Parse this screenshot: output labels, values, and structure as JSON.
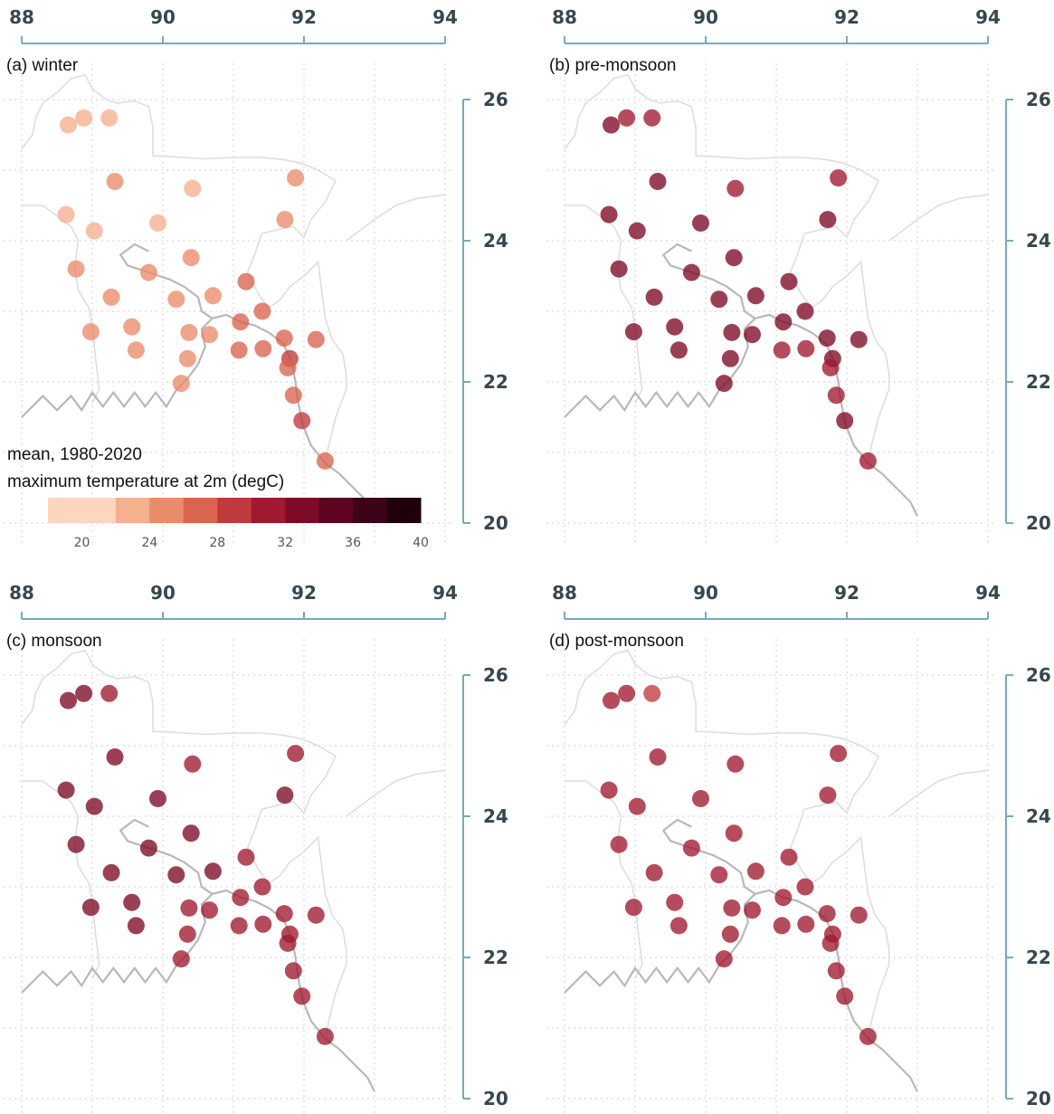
{
  "figure": {
    "lon_ticks": [
      "88",
      "90",
      "92",
      "94"
    ],
    "lat_ticks": [
      "20",
      "22",
      "24",
      "26"
    ]
  },
  "legend": {
    "line1": "mean, 1980-2020",
    "line2": "maximum temperature at 2m (degC)",
    "tick_labels": [
      "20",
      "24",
      "28",
      "32",
      "36",
      "40"
    ],
    "bins": [
      {
        "from": 18,
        "to": 22,
        "color": "#fcd6bf"
      },
      {
        "from": 22,
        "to": 24,
        "color": "#f5b08e"
      },
      {
        "from": 24,
        "to": 26,
        "color": "#e98c6a"
      },
      {
        "from": 26,
        "to": 28,
        "color": "#d9644f"
      },
      {
        "from": 28,
        "to": 30,
        "color": "#c03a3d"
      },
      {
        "from": 30,
        "to": 32,
        "color": "#9f1a30"
      },
      {
        "from": 32,
        "to": 34,
        "color": "#7d0a27"
      },
      {
        "from": 34,
        "to": 36,
        "color": "#5c0420"
      },
      {
        "from": 36,
        "to": 38,
        "color": "#3d0318"
      },
      {
        "from": 38,
        "to": 40,
        "color": "#1f010c"
      }
    ]
  },
  "panels": [
    {
      "title": "(a) winter",
      "stations": [
        {
          "lon": 88.66,
          "lat": 25.64,
          "c": "#f5b08e"
        },
        {
          "lon": 88.88,
          "lat": 25.74,
          "c": "#f5b08e"
        },
        {
          "lon": 89.24,
          "lat": 25.74,
          "c": "#f5b08e"
        },
        {
          "lon": 89.32,
          "lat": 24.84,
          "c": "#e98c6a"
        },
        {
          "lon": 90.42,
          "lat": 24.74,
          "c": "#f5b08e"
        },
        {
          "lon": 91.88,
          "lat": 24.89,
          "c": "#e98c6a"
        },
        {
          "lon": 88.63,
          "lat": 24.37,
          "c": "#f5b08e"
        },
        {
          "lon": 89.03,
          "lat": 24.14,
          "c": "#f5b08e"
        },
        {
          "lon": 89.93,
          "lat": 24.25,
          "c": "#f5b08e"
        },
        {
          "lon": 91.73,
          "lat": 24.3,
          "c": "#e98c6a"
        },
        {
          "lon": 88.77,
          "lat": 23.6,
          "c": "#e98c6a"
        },
        {
          "lon": 89.8,
          "lat": 23.55,
          "c": "#e98c6a"
        },
        {
          "lon": 90.4,
          "lat": 23.76,
          "c": "#e98c6a"
        },
        {
          "lon": 89.27,
          "lat": 23.2,
          "c": "#e98c6a"
        },
        {
          "lon": 90.19,
          "lat": 23.17,
          "c": "#e98c6a"
        },
        {
          "lon": 90.71,
          "lat": 23.22,
          "c": "#e98c6a"
        },
        {
          "lon": 91.18,
          "lat": 23.42,
          "c": "#d9644f"
        },
        {
          "lon": 91.41,
          "lat": 23.0,
          "c": "#d9644f"
        },
        {
          "lon": 88.98,
          "lat": 22.71,
          "c": "#e98c6a"
        },
        {
          "lon": 89.56,
          "lat": 22.78,
          "c": "#e98c6a"
        },
        {
          "lon": 90.37,
          "lat": 22.7,
          "c": "#e98c6a"
        },
        {
          "lon": 90.66,
          "lat": 22.67,
          "c": "#e98c6a"
        },
        {
          "lon": 91.1,
          "lat": 22.85,
          "c": "#d9644f"
        },
        {
          "lon": 91.72,
          "lat": 22.62,
          "c": "#d9644f"
        },
        {
          "lon": 92.17,
          "lat": 22.6,
          "c": "#d9644f"
        },
        {
          "lon": 89.62,
          "lat": 22.45,
          "c": "#e98c6a"
        },
        {
          "lon": 90.35,
          "lat": 22.33,
          "c": "#e98c6a"
        },
        {
          "lon": 91.08,
          "lat": 22.45,
          "c": "#d9644f"
        },
        {
          "lon": 91.42,
          "lat": 22.47,
          "c": "#d9644f"
        },
        {
          "lon": 91.8,
          "lat": 22.33,
          "c": "#c03a3d"
        },
        {
          "lon": 91.77,
          "lat": 22.2,
          "c": "#d9644f"
        },
        {
          "lon": 90.26,
          "lat": 21.98,
          "c": "#e98c6a"
        },
        {
          "lon": 91.85,
          "lat": 21.81,
          "c": "#d9644f"
        },
        {
          "lon": 91.97,
          "lat": 21.45,
          "c": "#c03a3d"
        },
        {
          "lon": 92.3,
          "lat": 20.88,
          "c": "#d9644f"
        }
      ]
    },
    {
      "title": "(b) pre-monsoon",
      "stations": [
        {
          "lon": 88.66,
          "lat": 25.64,
          "c": "#7d0a27"
        },
        {
          "lon": 88.88,
          "lat": 25.74,
          "c": "#9f1a30"
        },
        {
          "lon": 89.24,
          "lat": 25.74,
          "c": "#9f1a30"
        },
        {
          "lon": 89.32,
          "lat": 24.84,
          "c": "#7d0a27"
        },
        {
          "lon": 90.42,
          "lat": 24.74,
          "c": "#9f1a30"
        },
        {
          "lon": 91.88,
          "lat": 24.89,
          "c": "#9f1a30"
        },
        {
          "lon": 88.63,
          "lat": 24.37,
          "c": "#7d0a27"
        },
        {
          "lon": 89.03,
          "lat": 24.14,
          "c": "#7d0a27"
        },
        {
          "lon": 89.93,
          "lat": 24.25,
          "c": "#7d0a27"
        },
        {
          "lon": 91.73,
          "lat": 24.3,
          "c": "#7d0a27"
        },
        {
          "lon": 88.77,
          "lat": 23.6,
          "c": "#7d0a27"
        },
        {
          "lon": 89.8,
          "lat": 23.55,
          "c": "#7d0a27"
        },
        {
          "lon": 90.4,
          "lat": 23.76,
          "c": "#7d0a27"
        },
        {
          "lon": 89.27,
          "lat": 23.2,
          "c": "#7d0a27"
        },
        {
          "lon": 90.19,
          "lat": 23.17,
          "c": "#7d0a27"
        },
        {
          "lon": 90.71,
          "lat": 23.22,
          "c": "#7d0a27"
        },
        {
          "lon": 91.18,
          "lat": 23.42,
          "c": "#7d0a27"
        },
        {
          "lon": 91.41,
          "lat": 23.0,
          "c": "#7d0a27"
        },
        {
          "lon": 88.98,
          "lat": 22.71,
          "c": "#7d0a27"
        },
        {
          "lon": 89.56,
          "lat": 22.78,
          "c": "#7d0a27"
        },
        {
          "lon": 90.37,
          "lat": 22.7,
          "c": "#7d0a27"
        },
        {
          "lon": 90.66,
          "lat": 22.67,
          "c": "#7d0a27"
        },
        {
          "lon": 91.1,
          "lat": 22.85,
          "c": "#7d0a27"
        },
        {
          "lon": 91.72,
          "lat": 22.62,
          "c": "#7d0a27"
        },
        {
          "lon": 92.17,
          "lat": 22.6,
          "c": "#7d0a27"
        },
        {
          "lon": 89.62,
          "lat": 22.45,
          "c": "#7d0a27"
        },
        {
          "lon": 90.35,
          "lat": 22.33,
          "c": "#7d0a27"
        },
        {
          "lon": 91.08,
          "lat": 22.45,
          "c": "#9f1a30"
        },
        {
          "lon": 91.42,
          "lat": 22.47,
          "c": "#9f1a30"
        },
        {
          "lon": 91.8,
          "lat": 22.33,
          "c": "#7d0a27"
        },
        {
          "lon": 91.77,
          "lat": 22.2,
          "c": "#9f1a30"
        },
        {
          "lon": 90.26,
          "lat": 21.98,
          "c": "#7d0a27"
        },
        {
          "lon": 91.85,
          "lat": 21.81,
          "c": "#9f1a30"
        },
        {
          "lon": 91.97,
          "lat": 21.45,
          "c": "#7d0a27"
        },
        {
          "lon": 92.3,
          "lat": 20.88,
          "c": "#9f1a30"
        }
      ]
    },
    {
      "title": "(c) monsoon",
      "stations": [
        {
          "lon": 88.66,
          "lat": 25.64,
          "c": "#7d0a27"
        },
        {
          "lon": 88.88,
          "lat": 25.74,
          "c": "#7d0a27"
        },
        {
          "lon": 89.24,
          "lat": 25.74,
          "c": "#9f1a30"
        },
        {
          "lon": 89.32,
          "lat": 24.84,
          "c": "#7d0a27"
        },
        {
          "lon": 90.42,
          "lat": 24.74,
          "c": "#9f1a30"
        },
        {
          "lon": 91.88,
          "lat": 24.89,
          "c": "#9f1a30"
        },
        {
          "lon": 88.63,
          "lat": 24.37,
          "c": "#7d0a27"
        },
        {
          "lon": 89.03,
          "lat": 24.14,
          "c": "#7d0a27"
        },
        {
          "lon": 89.93,
          "lat": 24.25,
          "c": "#7d0a27"
        },
        {
          "lon": 91.73,
          "lat": 24.3,
          "c": "#7d0a27"
        },
        {
          "lon": 88.77,
          "lat": 23.6,
          "c": "#7d0a27"
        },
        {
          "lon": 89.8,
          "lat": 23.55,
          "c": "#7d0a27"
        },
        {
          "lon": 90.4,
          "lat": 23.76,
          "c": "#7d0a27"
        },
        {
          "lon": 89.27,
          "lat": 23.2,
          "c": "#7d0a27"
        },
        {
          "lon": 90.19,
          "lat": 23.17,
          "c": "#7d0a27"
        },
        {
          "lon": 90.71,
          "lat": 23.22,
          "c": "#7d0a27"
        },
        {
          "lon": 91.18,
          "lat": 23.42,
          "c": "#9f1a30"
        },
        {
          "lon": 91.41,
          "lat": 23.0,
          "c": "#9f1a30"
        },
        {
          "lon": 88.98,
          "lat": 22.71,
          "c": "#7d0a27"
        },
        {
          "lon": 89.56,
          "lat": 22.78,
          "c": "#7d0a27"
        },
        {
          "lon": 90.37,
          "lat": 22.7,
          "c": "#9f1a30"
        },
        {
          "lon": 90.66,
          "lat": 22.67,
          "c": "#9f1a30"
        },
        {
          "lon": 91.1,
          "lat": 22.85,
          "c": "#9f1a30"
        },
        {
          "lon": 91.72,
          "lat": 22.62,
          "c": "#9f1a30"
        },
        {
          "lon": 92.17,
          "lat": 22.6,
          "c": "#9f1a30"
        },
        {
          "lon": 89.62,
          "lat": 22.45,
          "c": "#7d0a27"
        },
        {
          "lon": 90.35,
          "lat": 22.33,
          "c": "#9f1a30"
        },
        {
          "lon": 91.08,
          "lat": 22.45,
          "c": "#9f1a30"
        },
        {
          "lon": 91.42,
          "lat": 22.47,
          "c": "#9f1a30"
        },
        {
          "lon": 91.8,
          "lat": 22.33,
          "c": "#9f1a30"
        },
        {
          "lon": 91.77,
          "lat": 22.2,
          "c": "#9f1a30"
        },
        {
          "lon": 90.26,
          "lat": 21.98,
          "c": "#9f1a30"
        },
        {
          "lon": 91.85,
          "lat": 21.81,
          "c": "#9f1a30"
        },
        {
          "lon": 91.97,
          "lat": 21.45,
          "c": "#9f1a30"
        },
        {
          "lon": 92.3,
          "lat": 20.88,
          "c": "#9f1a30"
        }
      ]
    },
    {
      "title": "(d) post-monsoon",
      "stations": [
        {
          "lon": 88.66,
          "lat": 25.64,
          "c": "#9f1a30"
        },
        {
          "lon": 88.88,
          "lat": 25.74,
          "c": "#9f1a30"
        },
        {
          "lon": 89.24,
          "lat": 25.74,
          "c": "#c03a3d"
        },
        {
          "lon": 89.32,
          "lat": 24.84,
          "c": "#9f1a30"
        },
        {
          "lon": 90.42,
          "lat": 24.74,
          "c": "#9f1a30"
        },
        {
          "lon": 91.88,
          "lat": 24.89,
          "c": "#9f1a30"
        },
        {
          "lon": 88.63,
          "lat": 24.37,
          "c": "#9f1a30"
        },
        {
          "lon": 89.03,
          "lat": 24.14,
          "c": "#9f1a30"
        },
        {
          "lon": 89.93,
          "lat": 24.25,
          "c": "#9f1a30"
        },
        {
          "lon": 91.73,
          "lat": 24.3,
          "c": "#9f1a30"
        },
        {
          "lon": 88.77,
          "lat": 23.6,
          "c": "#9f1a30"
        },
        {
          "lon": 89.8,
          "lat": 23.55,
          "c": "#9f1a30"
        },
        {
          "lon": 90.4,
          "lat": 23.76,
          "c": "#9f1a30"
        },
        {
          "lon": 89.27,
          "lat": 23.2,
          "c": "#9f1a30"
        },
        {
          "lon": 90.19,
          "lat": 23.17,
          "c": "#9f1a30"
        },
        {
          "lon": 90.71,
          "lat": 23.22,
          "c": "#9f1a30"
        },
        {
          "lon": 91.18,
          "lat": 23.42,
          "c": "#9f1a30"
        },
        {
          "lon": 91.41,
          "lat": 23.0,
          "c": "#9f1a30"
        },
        {
          "lon": 88.98,
          "lat": 22.71,
          "c": "#9f1a30"
        },
        {
          "lon": 89.56,
          "lat": 22.78,
          "c": "#9f1a30"
        },
        {
          "lon": 90.37,
          "lat": 22.7,
          "c": "#9f1a30"
        },
        {
          "lon": 90.66,
          "lat": 22.67,
          "c": "#9f1a30"
        },
        {
          "lon": 91.1,
          "lat": 22.85,
          "c": "#9f1a30"
        },
        {
          "lon": 91.72,
          "lat": 22.62,
          "c": "#9f1a30"
        },
        {
          "lon": 92.17,
          "lat": 22.6,
          "c": "#9f1a30"
        },
        {
          "lon": 89.62,
          "lat": 22.45,
          "c": "#9f1a30"
        },
        {
          "lon": 90.35,
          "lat": 22.33,
          "c": "#9f1a30"
        },
        {
          "lon": 91.08,
          "lat": 22.45,
          "c": "#9f1a30"
        },
        {
          "lon": 91.42,
          "lat": 22.47,
          "c": "#9f1a30"
        },
        {
          "lon": 91.8,
          "lat": 22.33,
          "c": "#9f1a30"
        },
        {
          "lon": 91.77,
          "lat": 22.2,
          "c": "#9f1a30"
        },
        {
          "lon": 90.26,
          "lat": 21.98,
          "c": "#9f1a30"
        },
        {
          "lon": 91.85,
          "lat": 21.81,
          "c": "#9f1a30"
        },
        {
          "lon": 91.97,
          "lat": 21.45,
          "c": "#9f1a30"
        },
        {
          "lon": 92.3,
          "lat": 20.88,
          "c": "#9f1a30"
        }
      ]
    }
  ],
  "map_geometry": {
    "coast": [
      [
        88.0,
        21.5
      ],
      [
        88.3,
        21.8
      ],
      [
        88.5,
        21.6
      ],
      [
        88.7,
        21.8
      ],
      [
        88.85,
        21.6
      ],
      [
        89.0,
        21.85
      ],
      [
        89.15,
        21.65
      ],
      [
        89.3,
        21.85
      ],
      [
        89.45,
        21.65
      ],
      [
        89.6,
        21.85
      ],
      [
        89.75,
        21.65
      ],
      [
        89.9,
        21.85
      ],
      [
        90.05,
        21.65
      ],
      [
        90.2,
        21.9
      ],
      [
        90.35,
        22.05
      ],
      [
        90.5,
        22.25
      ],
      [
        90.6,
        22.5
      ],
      [
        90.55,
        22.75
      ],
      [
        90.7,
        22.9
      ],
      [
        90.9,
        22.95
      ],
      [
        91.1,
        22.85
      ],
      [
        91.3,
        22.8
      ],
      [
        91.5,
        22.7
      ],
      [
        91.7,
        22.55
      ],
      [
        91.82,
        22.3
      ],
      [
        91.88,
        22.0
      ],
      [
        91.92,
        21.7
      ],
      [
        91.98,
        21.4
      ],
      [
        92.1,
        21.1
      ],
      [
        92.3,
        20.85
      ],
      [
        92.5,
        20.7
      ],
      [
        92.7,
        20.5
      ],
      [
        92.9,
        20.3
      ],
      [
        93.0,
        20.1
      ]
    ],
    "river": [
      [
        89.8,
        23.85
      ],
      [
        89.6,
        23.95
      ],
      [
        89.4,
        23.8
      ],
      [
        89.5,
        23.65
      ],
      [
        89.8,
        23.55
      ],
      [
        90.1,
        23.45
      ],
      [
        90.3,
        23.35
      ],
      [
        90.5,
        23.2
      ],
      [
        90.55,
        23.0
      ],
      [
        90.7,
        22.9
      ]
    ],
    "border": [
      [
        88.0,
        25.3
      ],
      [
        88.15,
        25.5
      ],
      [
        88.2,
        25.75
      ],
      [
        88.3,
        25.95
      ],
      [
        88.5,
        26.1
      ],
      [
        88.7,
        26.3
      ],
      [
        88.9,
        26.35
      ],
      [
        89.0,
        26.15
      ],
      [
        89.2,
        26.0
      ],
      [
        89.35,
        25.95
      ],
      [
        89.6,
        25.98
      ],
      [
        89.8,
        25.9
      ],
      [
        89.86,
        25.6
      ],
      [
        89.86,
        25.2
      ],
      [
        90.0,
        25.2
      ],
      [
        90.3,
        25.18
      ],
      [
        90.6,
        25.16
      ],
      [
        91.0,
        25.18
      ],
      [
        91.4,
        25.18
      ],
      [
        91.7,
        25.15
      ],
      [
        91.95,
        25.1
      ],
      [
        92.2,
        25.0
      ],
      [
        92.45,
        24.85
      ],
      [
        92.3,
        24.55
      ],
      [
        92.1,
        24.3
      ],
      [
        92.0,
        24.05
      ],
      [
        91.85,
        24.2
      ],
      [
        91.6,
        24.15
      ],
      [
        91.4,
        24.1
      ],
      [
        91.3,
        23.8
      ],
      [
        91.2,
        23.55
      ],
      [
        91.35,
        23.25
      ],
      [
        91.5,
        23.05
      ],
      [
        91.65,
        23.15
      ],
      [
        91.8,
        23.35
      ],
      [
        92.0,
        23.5
      ],
      [
        92.2,
        23.7
      ],
      [
        92.25,
        23.3
      ],
      [
        92.3,
        22.9
      ],
      [
        92.4,
        22.6
      ],
      [
        92.55,
        22.4
      ],
      [
        92.6,
        22.1
      ],
      [
        92.6,
        21.9
      ],
      [
        92.45,
        21.5
      ],
      [
        92.35,
        21.1
      ],
      [
        92.3,
        20.8
      ]
    ],
    "west": [
      [
        88.0,
        24.5
      ],
      [
        88.3,
        24.5
      ],
      [
        88.5,
        24.35
      ],
      [
        88.7,
        24.2
      ],
      [
        88.8,
        24.0
      ],
      [
        88.75,
        23.6
      ],
      [
        88.8,
        23.3
      ],
      [
        88.95,
        23.05
      ],
      [
        89.0,
        22.8
      ],
      [
        89.05,
        22.3
      ],
      [
        89.1,
        21.9
      ],
      [
        89.0,
        21.7
      ]
    ],
    "east": [
      [
        92.6,
        24.0
      ],
      [
        92.8,
        24.15
      ],
      [
        93.0,
        24.3
      ],
      [
        93.3,
        24.5
      ],
      [
        93.6,
        24.6
      ],
      [
        94.0,
        24.65
      ]
    ]
  }
}
